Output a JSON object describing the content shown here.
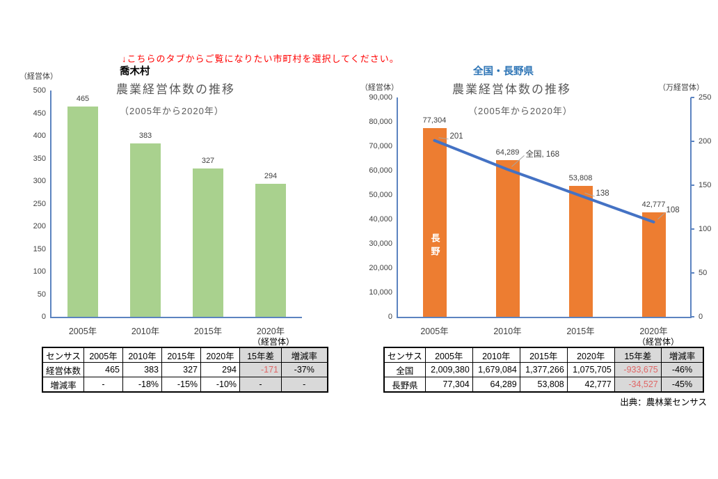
{
  "page": {
    "instruction": "↓こちらのタブからご覧になりたい市町村を選択してください。",
    "source": "出典：農林業センサス"
  },
  "colors": {
    "village_bar_green": "#A9D18E",
    "nagano_bar_orange": "#ED7D31",
    "national_line_blue": "#4472C4",
    "region_heading_blue": "#2E75B6",
    "instruction_red": "#FF0000",
    "negative_value_red": "#E06666",
    "table_gray_fill": "#D9D9D9",
    "axis_blue": "#5B83C0",
    "title_gray": "#595959"
  },
  "chart_data": [
    {
      "type": "bar",
      "region_label": "喬木村",
      "title": "農業経営体数の推移",
      "subtitle": "（2005年から2020年）",
      "y_axis_unit": "（経営体）",
      "table_unit": "（経営体）",
      "categories": [
        "2005年",
        "2010年",
        "2015年",
        "2020年"
      ],
      "values": [
        465,
        383,
        327,
        294
      ],
      "value_labels": [
        "465",
        "383",
        "327",
        "294"
      ],
      "ylim": [
        0,
        500
      ],
      "ytick_step": 50,
      "grid": false,
      "legend": "none",
      "bar_color": "#A9D18E"
    },
    {
      "type": "bar+line",
      "region_label": "全国・長野県",
      "title": "農業経営体数の推移",
      "subtitle": "（2005年から2020年）",
      "left_axis_unit": "（経営体）",
      "right_axis_unit": "（万経営体）",
      "table_unit": "（経営体）",
      "categories": [
        "2005年",
        "2010年",
        "2015年",
        "2020年"
      ],
      "series": [
        {
          "name": "長野",
          "type": "bar",
          "axis": "left",
          "values": [
            77304,
            64289,
            53808,
            42777
          ],
          "value_labels": [
            "77,304",
            "64,289",
            "53,808",
            "42,777"
          ],
          "color": "#ED7D31",
          "bar_inner_label": "長野"
        },
        {
          "name": "全国",
          "type": "line",
          "axis": "right",
          "values": [
            201,
            168,
            138,
            108
          ],
          "point_labels": [
            "201",
            "全国, 168",
            "138",
            "108"
          ],
          "color": "#4472C4"
        }
      ],
      "left_ylim": [
        0,
        90000
      ],
      "left_tick_step": 10000,
      "right_ylim": [
        0,
        250
      ],
      "right_tick_step": 50,
      "grid": false,
      "legend": "none"
    }
  ],
  "tables": [
    {
      "unit": "（経営体）",
      "header": [
        "センサス",
        "2005年",
        "2010年",
        "2015年",
        "2020年",
        "15年差",
        "増減率"
      ],
      "rows": [
        [
          "経営体数",
          "465",
          "383",
          "327",
          "294",
          "-171",
          "-37%"
        ],
        [
          "増減率",
          "-",
          "-18%",
          "-15%",
          "-10%",
          "-",
          "-"
        ]
      ]
    },
    {
      "unit": "（経営体）",
      "header": [
        "センサス",
        "2005年",
        "2010年",
        "2015年",
        "2020年",
        "15年差",
        "増減率"
      ],
      "rows": [
        [
          "全国",
          "2,009,380",
          "1,679,084",
          "1,377,266",
          "1,075,705",
          "-933,675",
          "-46%"
        ],
        [
          "長野県",
          "77,304",
          "64,289",
          "53,808",
          "42,777",
          "-34,527",
          "-45%"
        ]
      ]
    }
  ]
}
